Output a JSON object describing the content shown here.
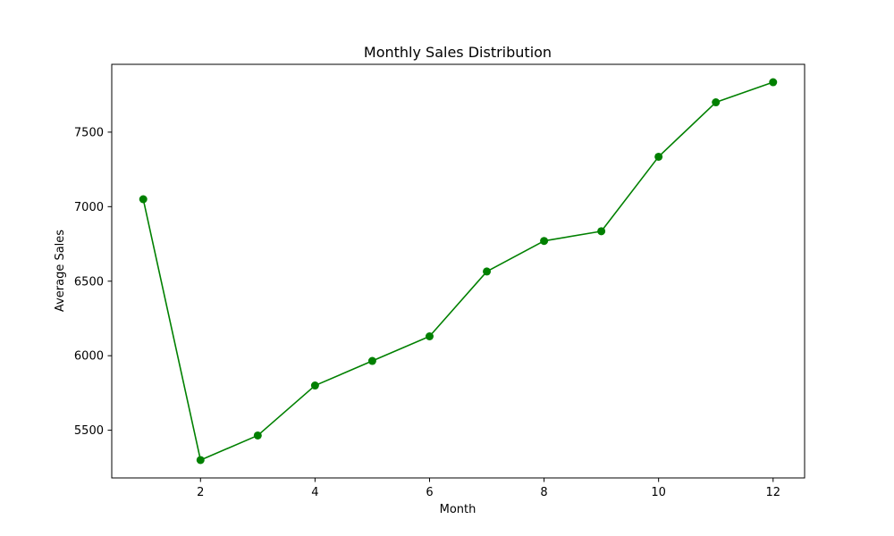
{
  "chart_data": {
    "type": "line",
    "title": "Monthly Sales Distribution",
    "xlabel": "Month",
    "ylabel": "Average Sales",
    "x": [
      1,
      2,
      3,
      4,
      5,
      6,
      7,
      8,
      9,
      10,
      11,
      12
    ],
    "series": [
      {
        "values": [
          7050,
          5300,
          5465,
          5800,
          5965,
          6130,
          6565,
          6770,
          6835,
          7335,
          7700,
          7835
        ],
        "color": "#008000"
      }
    ],
    "xlim": [
      0.45,
      12.55
    ],
    "ylim": [
      5180,
      7955
    ],
    "xticks": [
      2,
      4,
      6,
      8,
      10,
      12
    ],
    "yticks": [
      5500,
      6000,
      6500,
      7000,
      7500
    ],
    "xtick_labels": [
      "2",
      "4",
      "6",
      "8",
      "10",
      "12"
    ],
    "ytick_labels": [
      "5500",
      "6000",
      "6500",
      "7000",
      "7500"
    ],
    "grid": false,
    "marker": "circle"
  }
}
